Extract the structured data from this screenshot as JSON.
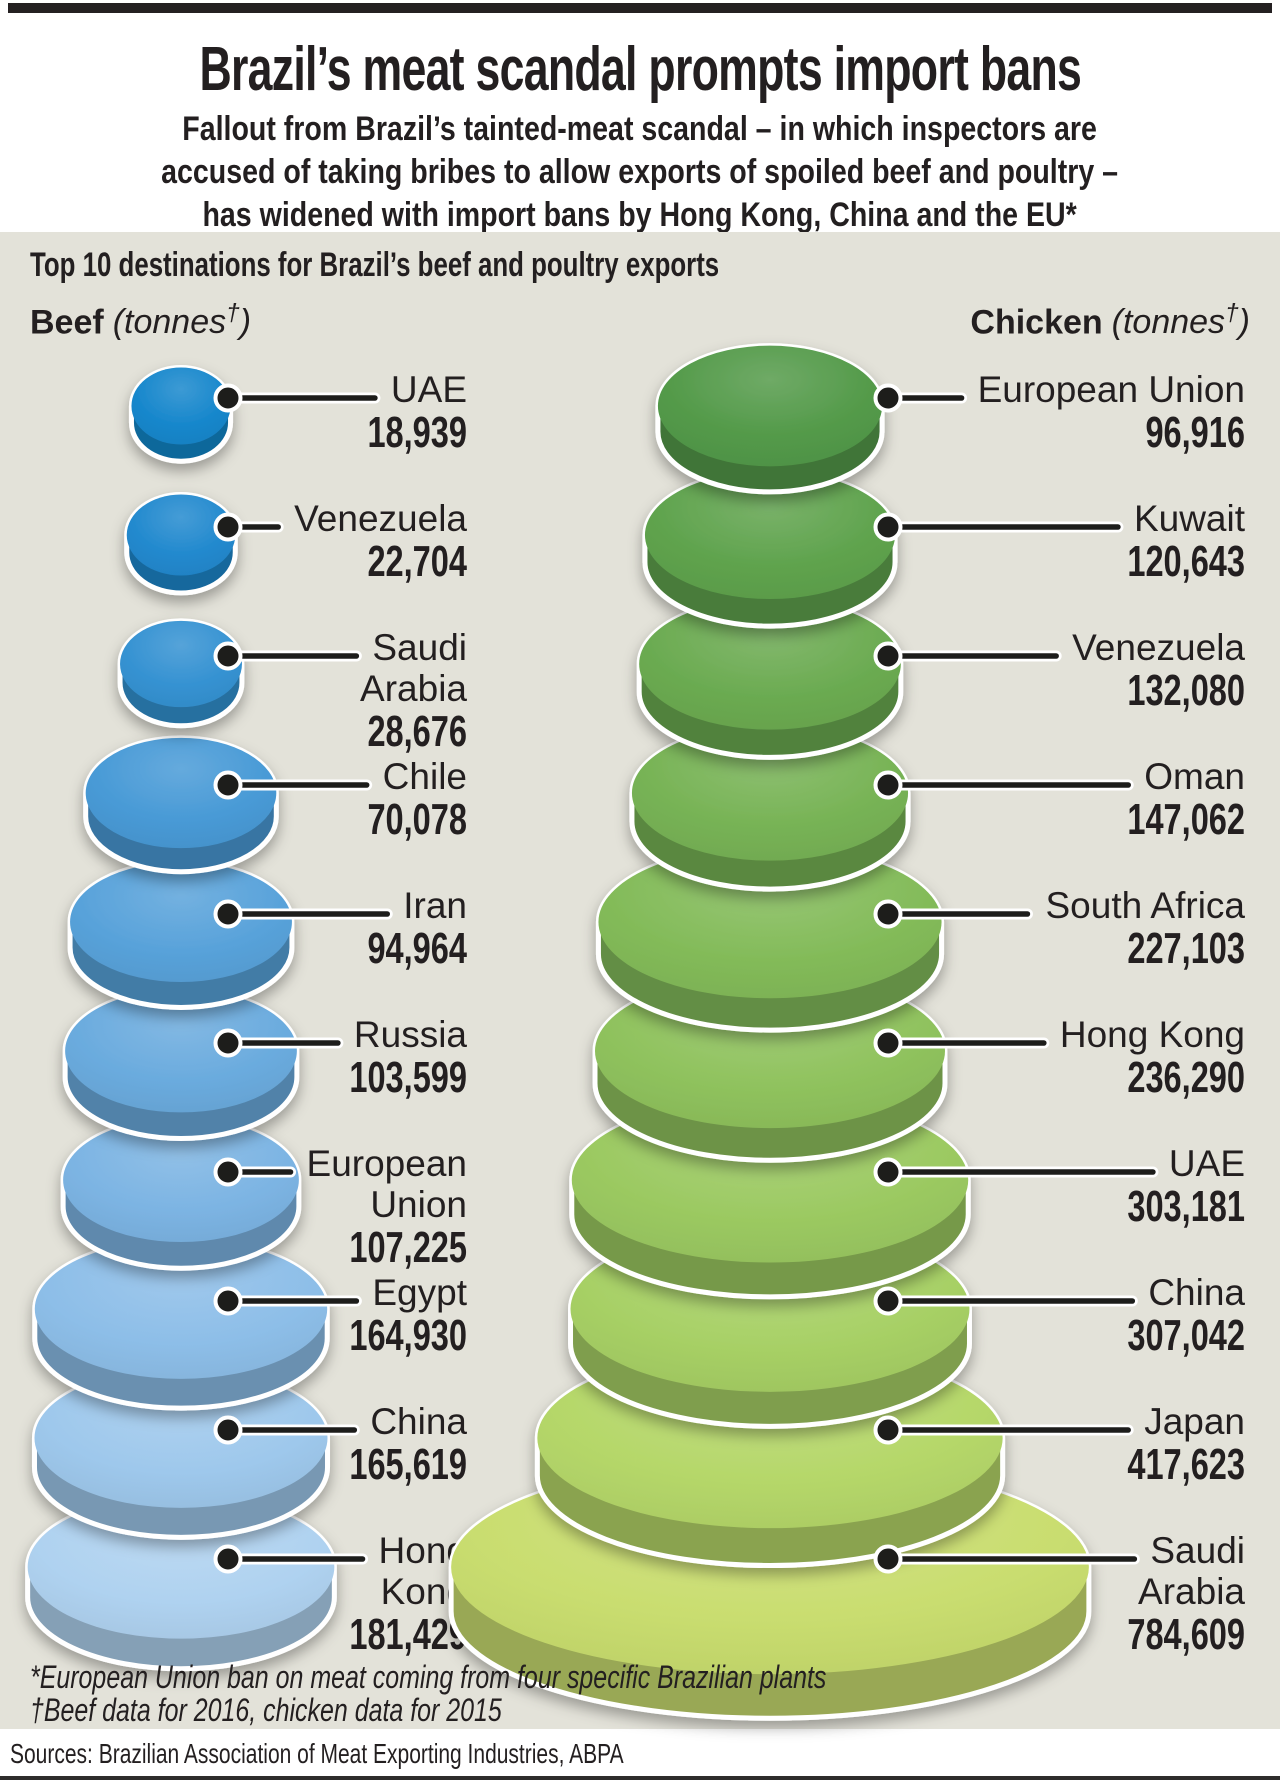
{
  "title": "Brazil’s meat scandal prompts import bans",
  "subtitle_lines": [
    "Fallout from Brazil’s tainted-meat scandal – in which inspectors are",
    "accused of taking bribes to allow exports of spoiled beef and poultry –",
    "has widened with import bans by Hong Kong, China and the EU*"
  ],
  "section_title": "Top 10 destinations for Brazil’s beef and poultry exports",
  "footnote_lines": [
    "*European Union ban on meat coming from four specific Brazilian plants",
    "†Beef data for 2016, chicken data for 2015"
  ],
  "source_line": "Sources: Brazilian Association of Meat Exporting Industries, ABPA",
  "colors": {
    "panel_background": "#e3e2d9",
    "ink": "#231f20",
    "callout_line": "#1d1d1b",
    "callout_casing": "#ffffff",
    "disc_outline": "#ffffff"
  },
  "chart_data": [
    {
      "id": "beef",
      "type": "bar",
      "subtype": "stacked-disc-pictogram",
      "title": "Beef",
      "unit_prefix": "(tonnes",
      "unit_dagger": "†",
      "unit_close": ")",
      "unit": "tonnes",
      "legend_position": "none",
      "categories": [
        "UAE",
        "Venezuela",
        "Saudi Arabia",
        "Chile",
        "Iran",
        "Russia",
        "European Union",
        "Egypt",
        "China",
        "Hong Kong"
      ],
      "values": [
        18939,
        22704,
        28676,
        70078,
        94964,
        103599,
        107225,
        164930,
        165619,
        181429
      ],
      "label_lines": [
        [
          "UAE"
        ],
        [
          "Venezuela"
        ],
        [
          "Saudi",
          "Arabia"
        ],
        [
          "Chile"
        ],
        [
          "Iran"
        ],
        [
          "Russia"
        ],
        [
          "European",
          "Union"
        ],
        [
          "Egypt"
        ],
        [
          "China"
        ],
        [
          "Hong",
          "Kong"
        ]
      ],
      "disc_colors": [
        "#1787cc",
        "#2189ce",
        "#3592d2",
        "#489ad6",
        "#58a2da",
        "#6aabde",
        "#7cb4e3",
        "#8dbee8",
        "#9ec8ec",
        "#afd2f0"
      ]
    },
    {
      "id": "chicken",
      "type": "bar",
      "subtype": "stacked-disc-pictogram",
      "title": "Chicken",
      "unit_prefix": "(tonnes",
      "unit_dagger": "†",
      "unit_close": ")",
      "unit": "tonnes",
      "legend_position": "none",
      "categories": [
        "European Union",
        "Kuwait",
        "Venezuela",
        "Oman",
        "South Africa",
        "Hong Kong",
        "UAE",
        "China",
        "Japan",
        "Saudi Arabia"
      ],
      "values": [
        96916,
        120643,
        132080,
        147062,
        227103,
        236290,
        303181,
        307042,
        417623,
        784609
      ],
      "label_lines": [
        [
          "European Union"
        ],
        [
          "Kuwait"
        ],
        [
          "Venezuela"
        ],
        [
          "Oman"
        ],
        [
          "South Africa"
        ],
        [
          "Hong Kong"
        ],
        [
          "UAE"
        ],
        [
          "China"
        ],
        [
          "Japan"
        ],
        [
          "Saudi",
          "Arabia"
        ]
      ],
      "disc_colors": [
        "#539a49",
        "#5fa34d",
        "#6bab51",
        "#77b355",
        "#83bb59",
        "#8fc25d",
        "#9bc961",
        "#a7d065",
        "#b5d769",
        "#c9dd6f"
      ]
    }
  ]
}
